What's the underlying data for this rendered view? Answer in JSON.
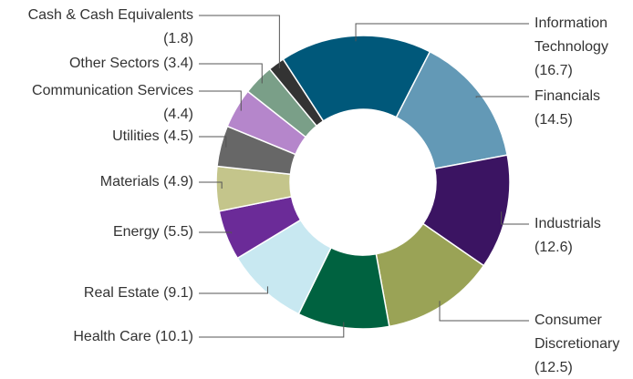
{
  "chart_data": {
    "type": "donut",
    "categories": [
      "Information Technology",
      "Financials",
      "Industrials",
      "Consumer Discretionary",
      "Health Care",
      "Real Estate",
      "Energy",
      "Materials",
      "Utilities",
      "Communication Services",
      "Other Sectors",
      "Cash & Cash Equivalents"
    ],
    "values": [
      16.7,
      14.5,
      12.6,
      12.5,
      10.1,
      9.1,
      5.5,
      4.9,
      4.5,
      4.4,
      3.4,
      1.8
    ],
    "value_labels": [
      "(16.7)",
      "(14.5)",
      "(12.6)",
      "(12.5)",
      "(10.1)",
      "(9.1)",
      "(5.5)",
      "(4.9)",
      "(4.5)",
      "(4.4)",
      "(3.4)",
      "(1.8)"
    ],
    "colors": [
      "#00587a",
      "#6399b6",
      "#3b1462",
      "#9aa356",
      "#006240",
      "#c8e8f1",
      "#6b2b98",
      "#c4c58b",
      "#676767",
      "#b586cb",
      "#7a9f88",
      "#333333"
    ]
  }
}
